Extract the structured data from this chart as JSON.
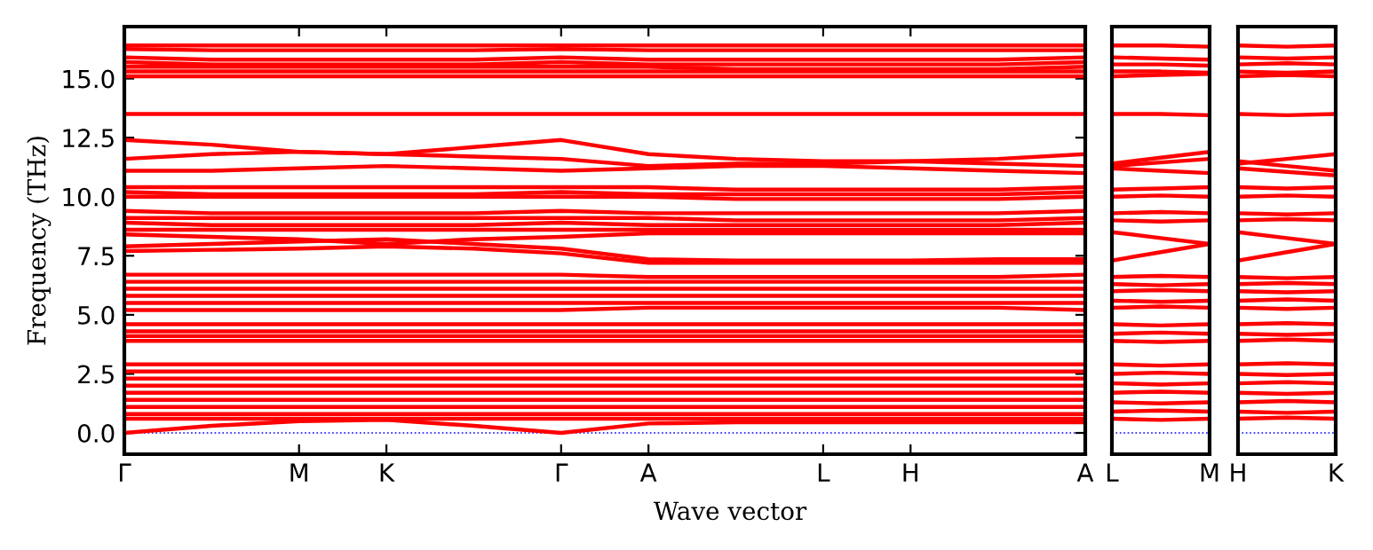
{
  "chart_data": [
    {
      "type": "line",
      "xlabel": "Wave vector",
      "ylabel": "Frequency (THz)",
      "categories": [
        "Γ",
        null,
        "M",
        "K",
        null,
        "Γ",
        "A",
        null,
        "L",
        "H",
        null,
        "A"
      ],
      "ylim": [
        -0.9,
        17.2
      ],
      "yticks": [
        {
          "value": 0,
          "label": "0.0"
        },
        2.5,
        {
          "value": 5,
          "label": "5.0"
        },
        7.5,
        {
          "value": 10,
          "label": "10.0"
        },
        12.5,
        {
          "value": 15,
          "label": "15.0"
        }
      ],
      "ref_lines": [
        {
          "axis": "y",
          "value": 0,
          "color": "#0000ff",
          "line_style": "dotted"
        }
      ],
      "marker": "none",
      "line_style": "solid",
      "series": [
        {
          "color": "#ff0000",
          "values": [
            16.4,
            16.4,
            16.4,
            16.4,
            16.4,
            16.4,
            16.4,
            16.4,
            16.4,
            16.4,
            16.4,
            16.4
          ]
        },
        {
          "color": "#ff0000",
          "values": [
            16.25,
            16.2,
            16.2,
            16.2,
            16.2,
            16.25,
            16.2,
            16.2,
            16.2,
            16.2,
            16.2,
            16.2
          ]
        },
        {
          "color": "#ff0000",
          "values": [
            15.9,
            15.8,
            15.8,
            15.8,
            15.8,
            15.9,
            15.8,
            15.8,
            15.8,
            15.8,
            15.8,
            15.9
          ]
        },
        {
          "color": "#ff0000",
          "values": [
            15.7,
            15.6,
            15.6,
            15.6,
            15.6,
            15.7,
            15.6,
            15.6,
            15.6,
            15.6,
            15.6,
            15.7
          ]
        },
        {
          "color": "#ff0000",
          "values": [
            15.5,
            15.5,
            15.5,
            15.5,
            15.5,
            15.5,
            15.5,
            15.4,
            15.4,
            15.4,
            15.4,
            15.5
          ]
        },
        {
          "color": "#ff0000",
          "values": [
            15.3,
            15.3,
            15.3,
            15.3,
            15.3,
            15.3,
            15.3,
            15.3,
            15.3,
            15.3,
            15.3,
            15.3
          ]
        },
        {
          "color": "#ff0000",
          "values": [
            15.1,
            15.1,
            15.1,
            15.1,
            15.1,
            15.1,
            15.1,
            15.1,
            15.1,
            15.1,
            15.1,
            15.1
          ]
        },
        {
          "color": "#ff0000",
          "values": [
            13.5,
            13.5,
            13.5,
            13.5,
            13.5,
            13.5,
            13.5,
            13.5,
            13.5,
            13.5,
            13.5,
            13.5
          ]
        },
        {
          "color": "#ff0000",
          "values": [
            12.4,
            12.2,
            11.9,
            11.8,
            12.1,
            12.4,
            11.8,
            11.6,
            11.5,
            11.5,
            11.6,
            11.8
          ]
        },
        {
          "color": "#ff0000",
          "values": [
            11.6,
            11.8,
            11.9,
            11.8,
            11.7,
            11.6,
            11.3,
            11.4,
            11.4,
            11.5,
            11.4,
            11.3
          ]
        },
        {
          "color": "#ff0000",
          "values": [
            11.1,
            11.1,
            11.2,
            11.3,
            11.2,
            11.1,
            11.2,
            11.3,
            11.3,
            11.2,
            11.1,
            11.0
          ]
        },
        {
          "color": "#ff0000",
          "values": [
            10.4,
            10.4,
            10.4,
            10.4,
            10.4,
            10.4,
            10.4,
            10.3,
            10.3,
            10.3,
            10.3,
            10.4
          ]
        },
        {
          "color": "#ff0000",
          "values": [
            10.2,
            10.1,
            10.1,
            10.1,
            10.1,
            10.2,
            10.1,
            10.1,
            10.1,
            10.1,
            10.1,
            10.2
          ]
        },
        {
          "color": "#ff0000",
          "values": [
            10.0,
            10.0,
            10.0,
            10.0,
            10.0,
            10.0,
            10.0,
            9.9,
            9.9,
            9.9,
            9.9,
            10.0
          ]
        },
        {
          "color": "#ff0000",
          "values": [
            9.4,
            9.3,
            9.3,
            9.3,
            9.3,
            9.4,
            9.3,
            9.3,
            9.3,
            9.3,
            9.3,
            9.4
          ]
        },
        {
          "color": "#ff0000",
          "values": [
            9.1,
            9.1,
            9.1,
            9.1,
            9.1,
            9.1,
            9.1,
            9.0,
            9.0,
            9.0,
            9.0,
            9.1
          ]
        },
        {
          "color": "#ff0000",
          "values": [
            8.9,
            8.8,
            8.8,
            8.8,
            8.8,
            8.9,
            8.8,
            8.8,
            8.8,
            8.8,
            8.8,
            8.9
          ]
        },
        {
          "color": "#ff0000",
          "values": [
            8.6,
            8.6,
            8.6,
            8.6,
            8.6,
            8.6,
            8.6,
            8.6,
            8.6,
            8.6,
            8.6,
            8.6
          ]
        },
        {
          "color": "#ff0000",
          "values": [
            8.4,
            8.3,
            8.2,
            8.0,
            8.2,
            8.3,
            8.45,
            8.45,
            8.45,
            8.45,
            8.45,
            8.45
          ]
        },
        {
          "color": "#ff0000",
          "values": [
            7.9,
            8.0,
            8.1,
            8.2,
            8.0,
            7.8,
            7.35,
            7.3,
            7.3,
            7.3,
            7.35,
            7.35
          ]
        },
        {
          "color": "#ff0000",
          "values": [
            7.7,
            7.75,
            7.8,
            7.9,
            7.8,
            7.6,
            7.2,
            7.2,
            7.2,
            7.2,
            7.2,
            7.2
          ]
        },
        {
          "color": "#ff0000",
          "values": [
            6.7,
            6.7,
            6.7,
            6.7,
            6.7,
            6.7,
            6.6,
            6.6,
            6.6,
            6.6,
            6.6,
            6.7
          ]
        },
        {
          "color": "#ff0000",
          "values": [
            6.4,
            6.4,
            6.4,
            6.4,
            6.4,
            6.4,
            6.4,
            6.4,
            6.4,
            6.4,
            6.4,
            6.4
          ]
        },
        {
          "color": "#ff0000",
          "values": [
            6.1,
            6.1,
            6.1,
            6.1,
            6.1,
            6.1,
            6.1,
            6.1,
            6.1,
            6.1,
            6.1,
            6.1
          ]
        },
        {
          "color": "#ff0000",
          "values": [
            5.8,
            5.8,
            5.8,
            5.8,
            5.8,
            5.8,
            5.8,
            5.8,
            5.8,
            5.8,
            5.8,
            5.8
          ]
        },
        {
          "color": "#ff0000",
          "values": [
            5.5,
            5.5,
            5.5,
            5.5,
            5.5,
            5.5,
            5.5,
            5.5,
            5.5,
            5.5,
            5.5,
            5.5
          ]
        },
        {
          "color": "#ff0000",
          "values": [
            5.2,
            5.2,
            5.2,
            5.2,
            5.2,
            5.2,
            5.3,
            5.3,
            5.3,
            5.3,
            5.3,
            5.2
          ]
        },
        {
          "color": "#ff0000",
          "values": [
            4.6,
            4.6,
            4.6,
            4.6,
            4.6,
            4.6,
            4.6,
            4.6,
            4.6,
            4.6,
            4.6,
            4.6
          ]
        },
        {
          "color": "#ff0000",
          "values": [
            4.3,
            4.3,
            4.3,
            4.3,
            4.3,
            4.3,
            4.3,
            4.3,
            4.3,
            4.3,
            4.3,
            4.3
          ]
        },
        {
          "color": "#ff0000",
          "values": [
            4.1,
            4.1,
            4.1,
            4.1,
            4.1,
            4.1,
            4.1,
            4.1,
            4.1,
            4.1,
            4.1,
            4.1
          ]
        },
        {
          "color": "#ff0000",
          "values": [
            3.9,
            3.9,
            3.9,
            3.9,
            3.9,
            3.9,
            3.9,
            3.9,
            3.9,
            3.9,
            3.9,
            3.9
          ]
        },
        {
          "color": "#ff0000",
          "values": [
            2.9,
            2.9,
            2.9,
            2.9,
            2.9,
            2.9,
            2.9,
            2.9,
            2.9,
            2.9,
            2.9,
            2.9
          ]
        },
        {
          "color": "#ff0000",
          "values": [
            2.6,
            2.6,
            2.6,
            2.6,
            2.6,
            2.6,
            2.6,
            2.6,
            2.6,
            2.6,
            2.6,
            2.6
          ]
        },
        {
          "color": "#ff0000",
          "values": [
            2.3,
            2.3,
            2.3,
            2.3,
            2.3,
            2.3,
            2.3,
            2.3,
            2.3,
            2.3,
            2.3,
            2.3
          ]
        },
        {
          "color": "#ff0000",
          "values": [
            2.0,
            2.0,
            2.0,
            2.0,
            2.0,
            2.0,
            2.0,
            2.0,
            2.0,
            2.0,
            2.0,
            2.0
          ]
        },
        {
          "color": "#ff0000",
          "values": [
            1.7,
            1.7,
            1.7,
            1.7,
            1.7,
            1.7,
            1.7,
            1.7,
            1.7,
            1.7,
            1.7,
            1.7
          ]
        },
        {
          "color": "#ff0000",
          "values": [
            1.4,
            1.4,
            1.4,
            1.4,
            1.4,
            1.4,
            1.4,
            1.4,
            1.4,
            1.4,
            1.4,
            1.4
          ]
        },
        {
          "color": "#ff0000",
          "values": [
            1.1,
            1.1,
            1.1,
            1.1,
            1.1,
            1.1,
            1.1,
            1.1,
            1.1,
            1.1,
            1.1,
            1.1
          ]
        },
        {
          "color": "#ff0000",
          "values": [
            0.8,
            0.8,
            0.8,
            0.8,
            0.8,
            0.8,
            0.8,
            0.8,
            0.8,
            0.8,
            0.8,
            0.8
          ]
        },
        {
          "color": "#ff0000",
          "values": [
            0.6,
            0.6,
            0.6,
            0.6,
            0.6,
            0.6,
            0.6,
            0.6,
            0.6,
            0.6,
            0.6,
            0.6
          ]
        },
        {
          "color": "#ff0000",
          "values": [
            0,
            0.3,
            0.5,
            0.55,
            0.3,
            0,
            0.4,
            0.45,
            0.45,
            0.45,
            0.45,
            0.45
          ]
        }
      ]
    },
    {
      "type": "line",
      "categories": [
        "L",
        null,
        "M"
      ],
      "ylim": [
        -0.9,
        17.2
      ],
      "yticks": [
        {
          "value": 0,
          "label": null
        },
        {
          "value": 2.5,
          "label": null
        },
        {
          "value": 5,
          "label": null
        },
        {
          "value": 7.5,
          "label": null
        },
        {
          "value": 10,
          "label": null
        },
        {
          "value": 12.5,
          "label": null
        },
        {
          "value": 15,
          "label": null
        }
      ],
      "tick_labels": "x",
      "ref_lines": [
        {
          "axis": "y",
          "value": 0,
          "color": "#0000ff",
          "line_style": "dotted"
        }
      ],
      "marker": "none",
      "line_style": "solid",
      "series": [
        {
          "color": "#ff0000",
          "values": [
            16.4,
            16.4,
            16.35
          ]
        },
        {
          "color": "#ff0000",
          "values": [
            15.9,
            15.85,
            15.8
          ]
        },
        {
          "color": "#ff0000",
          "values": [
            15.6,
            15.6,
            15.55
          ]
        },
        {
          "color": "#ff0000",
          "values": [
            15.3,
            15.3,
            15.25
          ]
        },
        {
          "color": "#ff0000",
          "values": [
            15.1,
            15.15,
            15.2
          ]
        },
        {
          "color": "#ff0000",
          "values": [
            13.5,
            13.5,
            13.45
          ]
        },
        {
          "color": "#ff0000",
          "values": [
            11.4,
            11.65,
            11.9
          ]
        },
        {
          "color": "#ff0000",
          "values": [
            11.3,
            11.45,
            11.6
          ]
        },
        {
          "color": "#ff0000",
          "values": [
            11.2,
            11.1,
            11.0
          ]
        },
        {
          "color": "#ff0000",
          "values": [
            10.3,
            10.35,
            10.4
          ]
        },
        {
          "color": "#ff0000",
          "values": [
            10.0,
            10.05,
            10.0
          ]
        },
        {
          "color": "#ff0000",
          "values": [
            9.3,
            9.35,
            9.3
          ]
        },
        {
          "color": "#ff0000",
          "values": [
            9.0,
            8.95,
            9.0
          ]
        },
        {
          "color": "#ff0000",
          "values": [
            8.5,
            8.25,
            8.0
          ]
        },
        {
          "color": "#ff0000",
          "values": [
            7.3,
            7.65,
            8.0
          ]
        },
        {
          "color": "#ff0000",
          "values": [
            6.6,
            6.65,
            6.6
          ]
        },
        {
          "color": "#ff0000",
          "values": [
            6.3,
            6.25,
            6.3
          ]
        },
        {
          "color": "#ff0000",
          "values": [
            6.0,
            6.05,
            6.0
          ]
        },
        {
          "color": "#ff0000",
          "values": [
            5.6,
            5.55,
            5.6
          ]
        },
        {
          "color": "#ff0000",
          "values": [
            5.3,
            5.35,
            5.3
          ]
        },
        {
          "color": "#ff0000",
          "values": [
            4.6,
            4.55,
            4.6
          ]
        },
        {
          "color": "#ff0000",
          "values": [
            4.2,
            4.25,
            4.2
          ]
        },
        {
          "color": "#ff0000",
          "values": [
            3.9,
            3.85,
            3.9
          ]
        },
        {
          "color": "#ff0000",
          "values": [
            2.9,
            2.85,
            2.9
          ]
        },
        {
          "color": "#ff0000",
          "values": [
            2.5,
            2.55,
            2.5
          ]
        },
        {
          "color": "#ff0000",
          "values": [
            2.1,
            2.05,
            2.1
          ]
        },
        {
          "color": "#ff0000",
          "values": [
            1.7,
            1.75,
            1.7
          ]
        },
        {
          "color": "#ff0000",
          "values": [
            1.3,
            1.25,
            1.3
          ]
        },
        {
          "color": "#ff0000",
          "values": [
            0.9,
            0.95,
            0.9
          ]
        },
        {
          "color": "#ff0000",
          "values": [
            0.6,
            0.55,
            0.6
          ]
        }
      ]
    },
    {
      "type": "line",
      "categories": [
        "H",
        null,
        "K"
      ],
      "ylim": [
        -0.9,
        17.2
      ],
      "yticks": [
        {
          "value": 0,
          "label": null
        },
        {
          "value": 2.5,
          "label": null
        },
        {
          "value": 5,
          "label": null
        },
        {
          "value": 7.5,
          "label": null
        },
        {
          "value": 10,
          "label": null
        },
        {
          "value": 12.5,
          "label": null
        },
        {
          "value": 15,
          "label": null
        }
      ],
      "tick_labels": "x",
      "ref_lines": [
        {
          "axis": "y",
          "value": 0,
          "color": "#0000ff",
          "line_style": "dotted"
        }
      ],
      "marker": "none",
      "line_style": "solid",
      "series": [
        {
          "color": "#ff0000",
          "values": [
            16.4,
            16.35,
            16.4
          ]
        },
        {
          "color": "#ff0000",
          "values": [
            15.9,
            15.85,
            15.9
          ]
        },
        {
          "color": "#ff0000",
          "values": [
            15.6,
            15.65,
            15.6
          ]
        },
        {
          "color": "#ff0000",
          "values": [
            15.3,
            15.25,
            15.3
          ]
        },
        {
          "color": "#ff0000",
          "values": [
            15.1,
            15.15,
            15.1
          ]
        },
        {
          "color": "#ff0000",
          "values": [
            13.5,
            13.45,
            13.5
          ]
        },
        {
          "color": "#ff0000",
          "values": [
            11.4,
            11.6,
            11.8
          ]
        },
        {
          "color": "#ff0000",
          "values": [
            11.5,
            11.3,
            11.1
          ]
        },
        {
          "color": "#ff0000",
          "values": [
            11.2,
            11.05,
            10.9
          ]
        },
        {
          "color": "#ff0000",
          "values": [
            10.4,
            10.35,
            10.4
          ]
        },
        {
          "color": "#ff0000",
          "values": [
            10.0,
            10.05,
            10.0
          ]
        },
        {
          "color": "#ff0000",
          "values": [
            9.3,
            9.25,
            9.3
          ]
        },
        {
          "color": "#ff0000",
          "values": [
            9.0,
            9.05,
            9.0
          ]
        },
        {
          "color": "#ff0000",
          "values": [
            8.5,
            8.25,
            8.0
          ]
        },
        {
          "color": "#ff0000",
          "values": [
            7.3,
            7.65,
            8.0
          ]
        },
        {
          "color": "#ff0000",
          "values": [
            6.6,
            6.55,
            6.6
          ]
        },
        {
          "color": "#ff0000",
          "values": [
            6.3,
            6.35,
            6.3
          ]
        },
        {
          "color": "#ff0000",
          "values": [
            6.0,
            5.95,
            6.0
          ]
        },
        {
          "color": "#ff0000",
          "values": [
            5.6,
            5.65,
            5.6
          ]
        },
        {
          "color": "#ff0000",
          "values": [
            5.3,
            5.25,
            5.3
          ]
        },
        {
          "color": "#ff0000",
          "values": [
            4.6,
            4.65,
            4.6
          ]
        },
        {
          "color": "#ff0000",
          "values": [
            4.2,
            4.15,
            4.2
          ]
        },
        {
          "color": "#ff0000",
          "values": [
            3.9,
            3.95,
            3.9
          ]
        },
        {
          "color": "#ff0000",
          "values": [
            2.9,
            2.95,
            2.9
          ]
        },
        {
          "color": "#ff0000",
          "values": [
            2.5,
            2.45,
            2.5
          ]
        },
        {
          "color": "#ff0000",
          "values": [
            2.1,
            2.15,
            2.1
          ]
        },
        {
          "color": "#ff0000",
          "values": [
            1.7,
            1.65,
            1.7
          ]
        },
        {
          "color": "#ff0000",
          "values": [
            1.3,
            1.35,
            1.3
          ]
        },
        {
          "color": "#ff0000",
          "values": [
            0.9,
            0.85,
            0.9
          ]
        },
        {
          "color": "#ff0000",
          "values": [
            0.6,
            0.65,
            0.6
          ]
        }
      ]
    }
  ]
}
